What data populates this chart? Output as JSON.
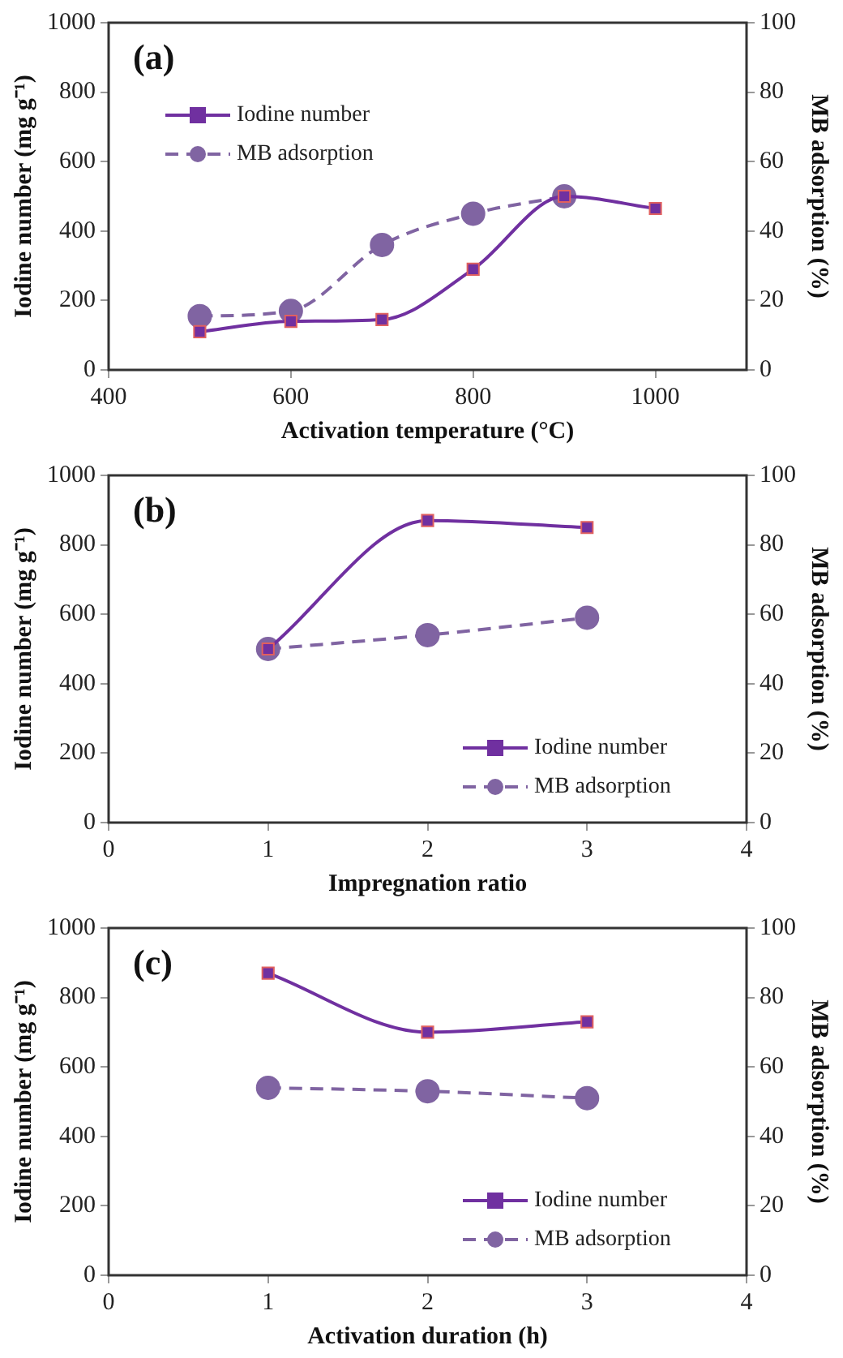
{
  "chart_data": [
    {
      "type": "line",
      "annotations": [
        "(a)"
      ],
      "xlabel": "Activation temperature (°C)",
      "ylabel": "Iodine number (mg g⁻¹)",
      "y2label": "MB adsorption (%)",
      "xlim": [
        400,
        1100
      ],
      "xticks": [
        400,
        600,
        800,
        1000
      ],
      "ylim": [
        0,
        1000
      ],
      "yticks": [
        0,
        200,
        400,
        600,
        800,
        1000
      ],
      "y2lim": [
        0,
        100
      ],
      "y2ticks": [
        0,
        20,
        40,
        60,
        80,
        100
      ],
      "legend": "top left",
      "grid": false,
      "x": [
        500,
        600,
        700,
        800,
        900,
        1000
      ],
      "series": [
        {
          "name": "Iodine number",
          "color": "#7030a0",
          "marker": "square",
          "line_style": "solid",
          "values": [
            110,
            140,
            145,
            290,
            500,
            465
          ]
        },
        {
          "name": "MB adsorption",
          "color": "#8064a2",
          "marker": "circle",
          "line_style": "dashed",
          "axis": "y2",
          "values": [
            15.5,
            17,
            36,
            45,
            50,
            null
          ]
        }
      ]
    },
    {
      "type": "line",
      "annotations": [
        "(b)"
      ],
      "xlabel": "Impregnation ratio",
      "ylabel": "Iodine number (mg g⁻¹)",
      "y2label": "MB adsorption (%)",
      "xlim": [
        0,
        4
      ],
      "xticks": [
        0,
        1,
        2,
        3,
        4
      ],
      "ylim": [
        0,
        1000
      ],
      "yticks": [
        0,
        200,
        400,
        600,
        800,
        1000
      ],
      "y2lim": [
        0,
        100
      ],
      "y2ticks": [
        0,
        20,
        40,
        60,
        80,
        100
      ],
      "legend": "bottom right",
      "grid": false,
      "x": [
        1,
        2,
        3
      ],
      "series": [
        {
          "name": "Iodine number",
          "color": "#7030a0",
          "marker": "square",
          "line_style": "solid",
          "values": [
            500,
            870,
            850
          ]
        },
        {
          "name": "MB adsorption",
          "color": "#8064a2",
          "marker": "circle",
          "line_style": "dashed",
          "axis": "y2",
          "values": [
            50,
            54,
            59
          ]
        }
      ]
    },
    {
      "type": "line",
      "annotations": [
        "(c)"
      ],
      "xlabel": "Activation duration (h)",
      "ylabel": "Iodine number (mg g⁻¹)",
      "y2label": "MB adsorption (%)",
      "xlim": [
        0,
        4
      ],
      "xticks": [
        0,
        1,
        2,
        3,
        4
      ],
      "ylim": [
        0,
        1000
      ],
      "yticks": [
        0,
        200,
        400,
        600,
        800,
        1000
      ],
      "y2lim": [
        0,
        100
      ],
      "y2ticks": [
        0,
        20,
        40,
        60,
        80,
        100
      ],
      "legend": "bottom right",
      "grid": false,
      "x": [
        1,
        2,
        3
      ],
      "series": [
        {
          "name": "Iodine number",
          "color": "#7030a0",
          "marker": "square",
          "line_style": "solid",
          "values": [
            870,
            700,
            730
          ]
        },
        {
          "name": "MB adsorption",
          "color": "#8064a2",
          "marker": "circle",
          "line_style": "dashed",
          "axis": "y2",
          "values": [
            54,
            53,
            51
          ]
        }
      ]
    }
  ]
}
